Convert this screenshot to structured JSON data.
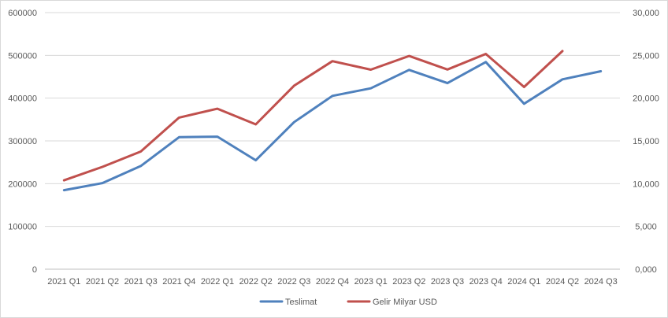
{
  "chart_data": {
    "type": "line",
    "categories": [
      "2021 Q1",
      "2021 Q2",
      "2021 Q3",
      "2021 Q4",
      "2022 Q1",
      "2022 Q2",
      "2022 Q3",
      "2022 Q4",
      "2023 Q1",
      "2023 Q2",
      "2023 Q3",
      "2023 Q4",
      "2024 Q1",
      "2024 Q2",
      "2024 Q3"
    ],
    "series": [
      {
        "name": "Teslimat",
        "axis": "left",
        "color": "#4f81bd",
        "values": [
          184800,
          201300,
          241300,
          308600,
          310000,
          254700,
          343800,
          405300,
          422900,
          466100,
          435100,
          484500,
          386800,
          444000,
          462900
        ]
      },
      {
        "name": "Gelir Milyar USD",
        "axis": "right",
        "color": "#c0504d",
        "values": [
          10.39,
          11.96,
          13.76,
          17.72,
          18.76,
          16.93,
          21.45,
          24.32,
          23.33,
          24.93,
          23.35,
          25.17,
          21.3,
          25.5,
          null
        ]
      }
    ],
    "y_left": {
      "ylim": [
        0,
        600000
      ],
      "ticks": [
        0,
        100000,
        200000,
        300000,
        400000,
        500000,
        600000
      ],
      "tick_labels": [
        "0",
        "100000",
        "200000",
        "300000",
        "400000",
        "500000",
        "600000"
      ]
    },
    "y_right": {
      "ylim": [
        0,
        30
      ],
      "ticks": [
        0,
        5,
        10,
        15,
        20,
        25,
        30
      ],
      "tick_labels": [
        "0,000",
        "5,000",
        "10,000",
        "15,000",
        "20,000",
        "25,000",
        "30,000"
      ]
    },
    "grid": true,
    "legend": "bottom"
  }
}
